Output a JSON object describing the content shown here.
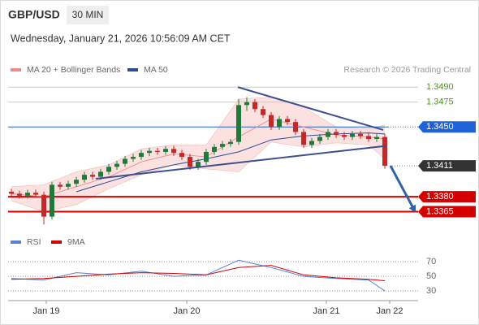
{
  "chart_data": {
    "type": "candlestick",
    "title": "GBP/USD",
    "timeframe": "30 MIN",
    "subtitle": "Wednesday, January 21, 2026 10:56:09 AM CET",
    "credit": "Research © 2026 Trading Central",
    "up_color": "#1f7a3a",
    "down_color": "#c62828",
    "ylim": [
      1.3345,
      1.35
    ],
    "xticks": [
      {
        "value": 4.3,
        "label": "Jan 19"
      },
      {
        "value": 21.6,
        "label": "Jan 20"
      },
      {
        "value": 38.8,
        "label": "Jan 21"
      },
      {
        "value": 46.6,
        "label": "Jan 22"
      }
    ],
    "candles": [
      [
        1.3385,
        1.3388,
        1.338,
        1.3383
      ],
      [
        1.3383,
        1.3386,
        1.3378,
        1.3381
      ],
      [
        1.3381,
        1.3387,
        1.3378,
        1.3384
      ],
      [
        1.3384,
        1.3387,
        1.3379,
        1.3382
      ],
      [
        1.3382,
        1.3385,
        1.3352,
        1.336
      ],
      [
        1.336,
        1.3395,
        1.3357,
        1.3392
      ],
      [
        1.3392,
        1.3395,
        1.3387,
        1.339
      ],
      [
        1.339,
        1.3396,
        1.3387,
        1.3393
      ],
      [
        1.3393,
        1.34,
        1.339,
        1.3397
      ],
      [
        1.3397,
        1.3405,
        1.3394,
        1.3402
      ],
      [
        1.3402,
        1.3405,
        1.3397,
        1.34
      ],
      [
        1.34,
        1.3408,
        1.3397,
        1.3405
      ],
      [
        1.3405,
        1.3413,
        1.3402,
        1.341
      ],
      [
        1.341,
        1.3416,
        1.3407,
        1.3413
      ],
      [
        1.3413,
        1.3421,
        1.341,
        1.3418
      ],
      [
        1.3418,
        1.3423,
        1.3415,
        1.342
      ],
      [
        1.342,
        1.3427,
        1.3417,
        1.3424
      ],
      [
        1.3424,
        1.3429,
        1.3421,
        1.3426
      ],
      [
        1.3426,
        1.3429,
        1.3422,
        1.3425
      ],
      [
        1.3425,
        1.3431,
        1.3422,
        1.3428
      ],
      [
        1.3428,
        1.3431,
        1.3421,
        1.3424
      ],
      [
        1.3424,
        1.3427,
        1.3417,
        1.342
      ],
      [
        1.342,
        1.3423,
        1.3407,
        1.341
      ],
      [
        1.341,
        1.3418,
        1.3407,
        1.3415
      ],
      [
        1.3415,
        1.3428,
        1.3412,
        1.3425
      ],
      [
        1.3425,
        1.3433,
        1.3422,
        1.343
      ],
      [
        1.343,
        1.3436,
        1.3427,
        1.3433
      ],
      [
        1.3433,
        1.3438,
        1.343,
        1.3435
      ],
      [
        1.3435,
        1.3478,
        1.3432,
        1.3472
      ],
      [
        1.3472,
        1.348,
        1.3466,
        1.3475
      ],
      [
        1.3475,
        1.3478,
        1.3465,
        1.3468
      ],
      [
        1.3468,
        1.3471,
        1.3459,
        1.3462
      ],
      [
        1.3462,
        1.3465,
        1.3447,
        1.345
      ],
      [
        1.345,
        1.3461,
        1.3447,
        1.3458
      ],
      [
        1.3458,
        1.3461,
        1.3452,
        1.3455
      ],
      [
        1.3455,
        1.3458,
        1.3442,
        1.3445
      ],
      [
        1.3445,
        1.3448,
        1.3429,
        1.3432
      ],
      [
        1.3432,
        1.3439,
        1.3429,
        1.3436
      ],
      [
        1.3436,
        1.3443,
        1.3433,
        1.344
      ],
      [
        1.344,
        1.3448,
        1.3437,
        1.3445
      ],
      [
        1.3445,
        1.3448,
        1.3439,
        1.3442
      ],
      [
        1.3442,
        1.3445,
        1.3437,
        1.344
      ],
      [
        1.344,
        1.3446,
        1.3437,
        1.3443
      ],
      [
        1.3443,
        1.3446,
        1.3438,
        1.3441
      ],
      [
        1.3441,
        1.3444,
        1.3435,
        1.3438
      ],
      [
        1.3438,
        1.3443,
        1.3435,
        1.344
      ],
      [
        1.344,
        1.3443,
        1.3408,
        1.3411
      ]
    ],
    "overlays": {
      "x": [
        0,
        4,
        8,
        12,
        16,
        20,
        24,
        28,
        32,
        36,
        40,
        44,
        46
      ],
      "series": [
        {
          "name": "MA 20 + Bollinger Bands",
          "color": "#f08a8a",
          "band_color": "#fbd9d9",
          "values": [
            1.3383,
            1.338,
            1.339,
            1.34,
            1.3415,
            1.3423,
            1.342,
            1.344,
            1.3458,
            1.345,
            1.3442,
            1.344,
            1.3438
          ],
          "upper": [
            1.339,
            1.3392,
            1.3405,
            1.3412,
            1.3428,
            1.3432,
            1.3432,
            1.3478,
            1.348,
            1.347,
            1.345,
            1.3448,
            1.3452
          ],
          "lower": [
            1.3376,
            1.3365,
            1.3372,
            1.3388,
            1.3402,
            1.3412,
            1.3408,
            1.3405,
            1.3435,
            1.343,
            1.3434,
            1.3432,
            1.3418
          ]
        },
        {
          "name": "MA 50",
          "color": "#2a4d8f",
          "values": [
            null,
            null,
            1.3385,
            1.3395,
            1.3405,
            1.3412,
            1.3418,
            1.3425,
            1.3437,
            1.3441,
            1.3443,
            1.3444,
            1.3443
          ]
        }
      ]
    },
    "trendlines": [
      {
        "color": "#3d4f8f",
        "x": [
          27.9,
          45.8
        ],
        "y": [
          1.349,
          1.3447
        ]
      },
      {
        "color": "#3d4f8f",
        "x": [
          10.4,
          46.1
        ],
        "y": [
          1.3398,
          1.3431
        ]
      }
    ],
    "arrow": {
      "color": "#2e63a8",
      "x": [
        46.7,
        49.8
      ],
      "y": [
        1.3411,
        1.3364
      ]
    },
    "levels": [
      {
        "value": 1.349,
        "label": "1.3490",
        "color": "#4a9a1a",
        "line": "#b8dba4",
        "style": "text"
      },
      {
        "value": 1.3475,
        "label": "1.3475",
        "color": "#4a9a1a",
        "line": "#b8dba4",
        "style": "text"
      },
      {
        "value": 1.345,
        "label": "1.3450",
        "color": "#1e63d8",
        "line": "#1e63d8",
        "style": "box"
      },
      {
        "value": 1.3411,
        "label": "1.3411",
        "color": "#333333",
        "line": "#888888",
        "style": "current"
      },
      {
        "value": 1.338,
        "label": "1.3380",
        "color": "#d50000",
        "line": "#d50000",
        "style": "box"
      },
      {
        "value": 1.3365,
        "label": "1.3365",
        "color": "#d50000",
        "line": "#d50000",
        "style": "box"
      }
    ],
    "rsi": {
      "ylim": [
        19,
        89
      ],
      "yticks": [
        70,
        50,
        30
      ],
      "x": [
        0,
        4,
        8,
        12,
        16,
        20,
        24,
        28,
        32,
        36,
        40,
        44,
        46
      ],
      "series": [
        {
          "name": "RSI",
          "color": "#5b7fd6",
          "values": [
            47,
            45,
            55,
            52,
            57,
            50,
            52,
            72,
            62,
            50,
            47,
            45,
            30
          ]
        },
        {
          "name": "9MA",
          "color": "#d00000",
          "values": [
            46,
            47,
            50,
            53,
            55,
            54,
            52,
            62,
            65,
            52,
            48,
            46,
            44
          ]
        }
      ]
    }
  }
}
